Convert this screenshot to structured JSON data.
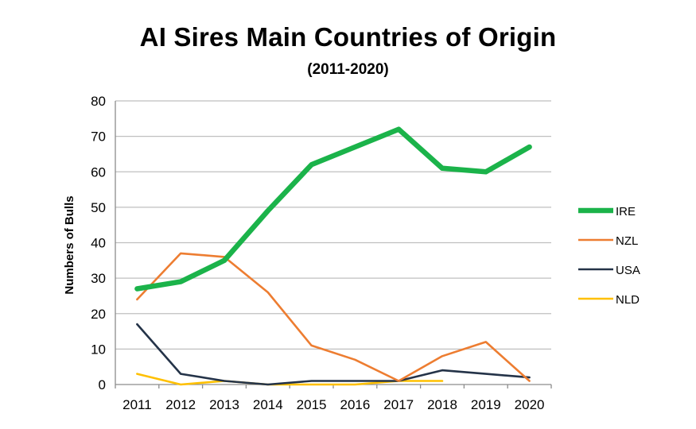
{
  "chart_data": {
    "type": "line",
    "title": "AI Sires Main Countries of Origin",
    "subtitle": "(2011-2020)",
    "xlabel": "",
    "ylabel": "Numbers of Bulls",
    "ylim": [
      0,
      80
    ],
    "yticks": [
      0,
      10,
      20,
      30,
      40,
      50,
      60,
      70,
      80
    ],
    "grid": true,
    "legend_position": "right",
    "categories": [
      "2011",
      "2012",
      "2013",
      "2014",
      "2015",
      "2016",
      "2017",
      "2018",
      "2019",
      "2020"
    ],
    "series": [
      {
        "name": "IRE",
        "color": "#1BB34A",
        "values": [
          27,
          29,
          35,
          49,
          62,
          67,
          72,
          61,
          60,
          67
        ]
      },
      {
        "name": "NZL",
        "color": "#ED7D31",
        "values": [
          24,
          37,
          36,
          26,
          11,
          7,
          1,
          8,
          12,
          1
        ]
      },
      {
        "name": "USA",
        "color": "#243348",
        "values": [
          17,
          3,
          1,
          0,
          1,
          1,
          1,
          4,
          3,
          2
        ]
      },
      {
        "name": "NLD",
        "color": "#FFC000",
        "values": [
          3,
          0,
          1,
          0,
          0,
          0,
          1,
          1,
          null,
          null
        ]
      }
    ]
  }
}
